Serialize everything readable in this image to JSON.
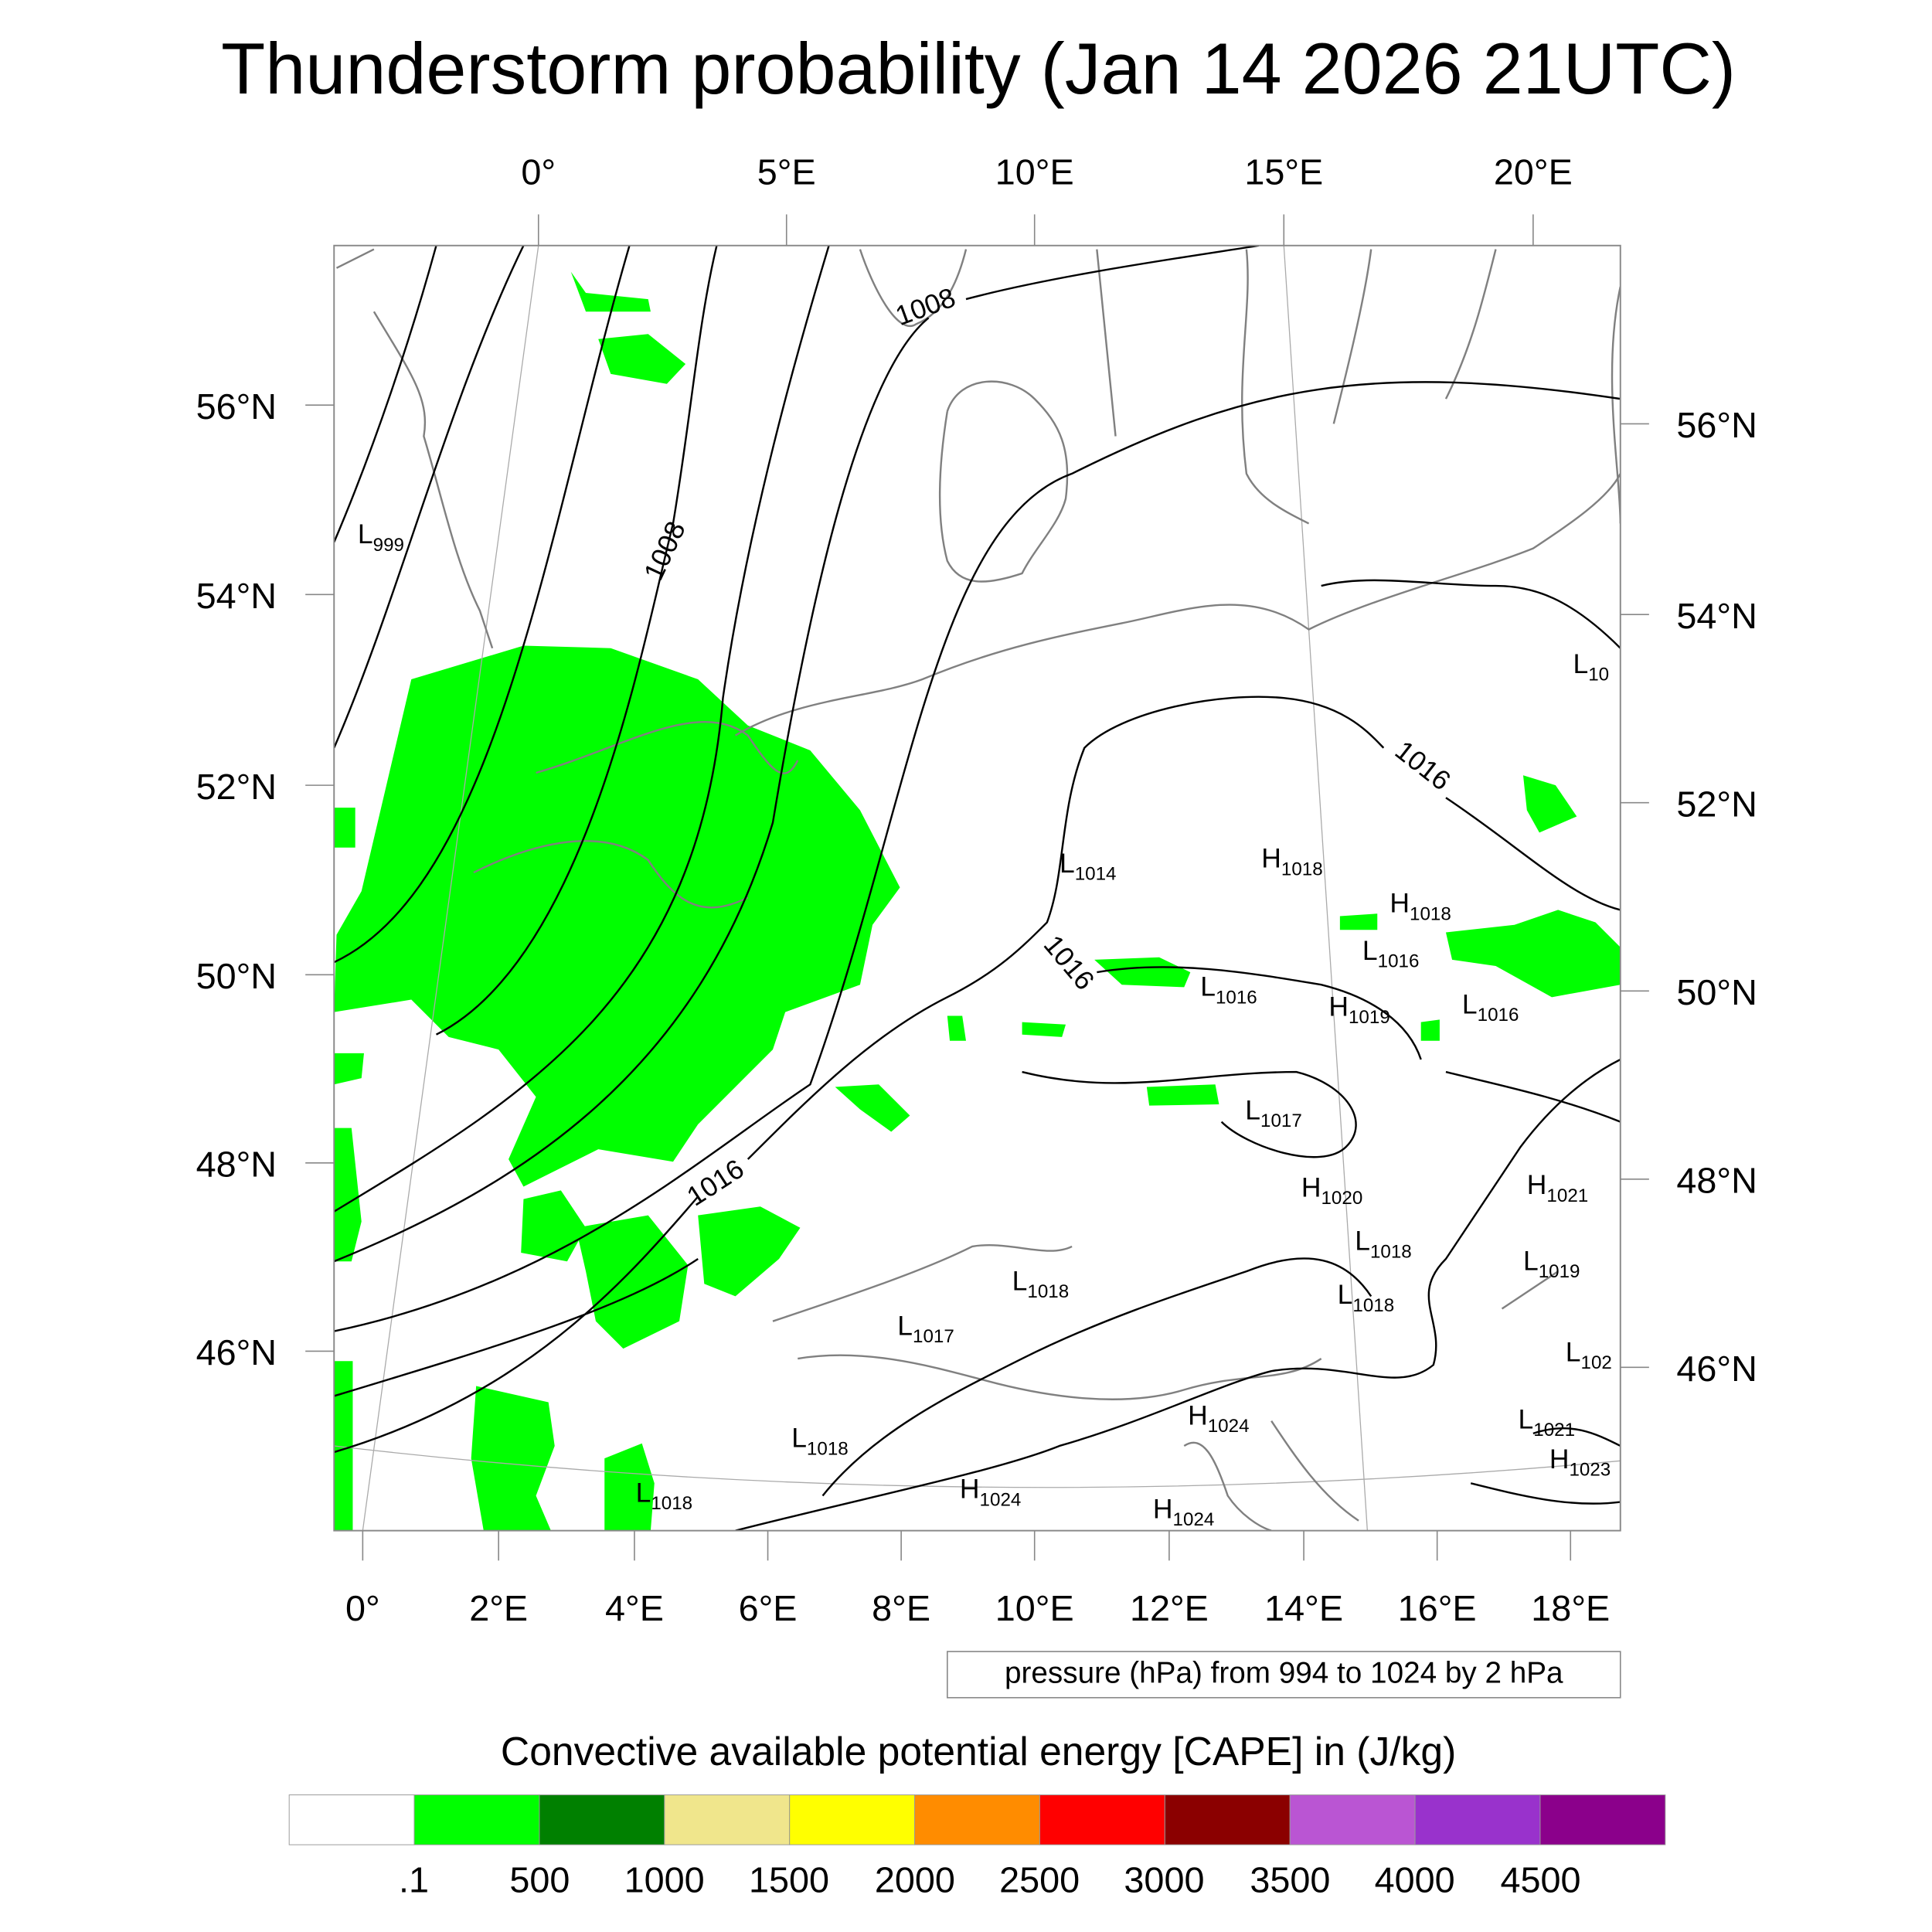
{
  "chart_data": {
    "type": "heatmap",
    "title": "Thunderstorm probability (Jan 14 2026 21UTC)",
    "top_lon_ticks": [
      "0°",
      "5°E",
      "10°E",
      "15°E",
      "20°E"
    ],
    "bottom_lon_ticks": [
      "0°",
      "2°E",
      "4°E",
      "6°E",
      "8°E",
      "10°E",
      "12°E",
      "14°E",
      "16°E",
      "18°E"
    ],
    "left_lat_ticks": [
      "56°N",
      "54°N",
      "52°N",
      "50°N",
      "48°N",
      "46°N"
    ],
    "right_lat_ticks": [
      "56°N",
      "54°N",
      "52°N",
      "50°N",
      "48°N",
      "46°N"
    ],
    "contour_note": "pressure (hPa) from 994 to 1024 by 2 hPa",
    "contour_labels": [
      "1008",
      "1008",
      "1016",
      "1016",
      "1016"
    ],
    "pressure_centers": [
      {
        "t": "L",
        "v": "999"
      },
      {
        "t": "L",
        "v": "10"
      },
      {
        "t": "L",
        "v": "1014"
      },
      {
        "t": "H",
        "v": "1018"
      },
      {
        "t": "H",
        "v": "1018"
      },
      {
        "t": "L",
        "v": "1016"
      },
      {
        "t": "L",
        "v": "1016"
      },
      {
        "t": "H",
        "v": "1019"
      },
      {
        "t": "L",
        "v": "1016"
      },
      {
        "t": "L",
        "v": "1017"
      },
      {
        "t": "H",
        "v": "1020"
      },
      {
        "t": "H",
        "v": "1021"
      },
      {
        "t": "L",
        "v": "1018"
      },
      {
        "t": "L",
        "v": "1019"
      },
      {
        "t": "L",
        "v": "1018"
      },
      {
        "t": "L",
        "v": "1018"
      },
      {
        "t": "L",
        "v": "1017"
      },
      {
        "t": "L",
        "v": "102"
      },
      {
        "t": "L",
        "v": "1018"
      },
      {
        "t": "H",
        "v": "1024"
      },
      {
        "t": "L",
        "v": "1021"
      },
      {
        "t": "H",
        "v": "1023"
      },
      {
        "t": "L",
        "v": "1018"
      },
      {
        "t": "H",
        "v": "1024"
      },
      {
        "t": "H",
        "v": "1024"
      }
    ],
    "colorbar": {
      "title": "Convective available potential energy [CAPE] in (J/kg)",
      "labels": [
        ".1",
        "500",
        "1000",
        "1500",
        "2000",
        "2500",
        "3000",
        "3500",
        "4000",
        "4500"
      ],
      "colors": [
        "#ffffff",
        "#00ff00",
        "#008000",
        "#f0e68c",
        "#ffff00",
        "#ff8c00",
        "#ff0000",
        "#8b0000",
        "#ba55d3",
        "#9932cc",
        "#8b008b"
      ]
    },
    "field_color": "#00ff00",
    "coast_color": "#808080"
  }
}
